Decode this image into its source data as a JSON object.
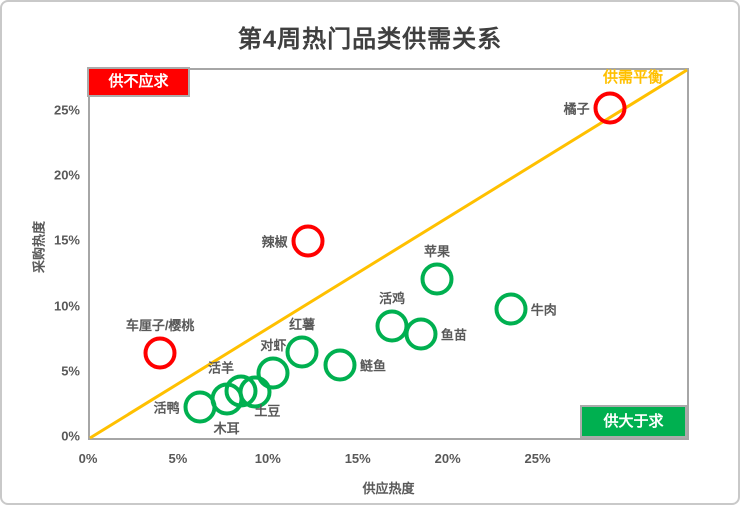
{
  "colors": {
    "red": "#FF0000",
    "green": "#00B050",
    "gold": "#FFC000",
    "axis_gray": "#A6A6A6",
    "text_gray": "#595959",
    "title_gray": "#3F3F3F",
    "badge_border": "#ABABAB",
    "frame_border": "#C9C9C9"
  },
  "chart_data": {
    "type": "scatter",
    "title": "第4周热门品类供需关系",
    "xlabel": "供应热度",
    "ylabel": "采购热度",
    "x_ticks": [
      "0%",
      "5%",
      "10%",
      "15%",
      "20%",
      "25%"
    ],
    "y_ticks": [
      "0%",
      "5%",
      "10%",
      "15%",
      "20%",
      "25%"
    ],
    "xlim": [
      0,
      33.2
    ],
    "ylim": [
      0,
      28.2
    ],
    "grid": false,
    "legend": "none",
    "reference_line": {
      "label": "供需平衡",
      "from_xy": [
        0,
        0
      ],
      "to_xy": [
        33.2,
        28.2
      ],
      "color": "gold"
    },
    "quadrant_labels": [
      {
        "label": "供不应求",
        "position": "top-left",
        "style": "red-badge"
      },
      {
        "label": "供需平衡",
        "position": "top-right",
        "style": "gold-text"
      },
      {
        "label": "供大于求",
        "position": "bottom-right",
        "style": "green-badge"
      }
    ],
    "points": [
      {
        "label": "橘子",
        "x": 28.9,
        "y": 25.3,
        "color": "red",
        "label_pos": "left"
      },
      {
        "label": "辣椒",
        "x": 12.1,
        "y": 15.1,
        "color": "red",
        "label_pos": "left"
      },
      {
        "label": "车厘子/樱桃",
        "x": 3.9,
        "y": 6.5,
        "color": "red",
        "label_pos": "above"
      },
      {
        "label": "苹果",
        "x": 19.3,
        "y": 12.2,
        "color": "green",
        "label_pos": "above"
      },
      {
        "label": "牛肉",
        "x": 23.4,
        "y": 9.9,
        "color": "green",
        "label_pos": "right"
      },
      {
        "label": "活鸡",
        "x": 16.8,
        "y": 8.6,
        "color": "green",
        "label_pos": "above"
      },
      {
        "label": "鱼苗",
        "x": 18.4,
        "y": 8.0,
        "color": "green",
        "label_pos": "right"
      },
      {
        "label": "鲢鱼",
        "x": 13.9,
        "y": 5.6,
        "color": "green",
        "label_pos": "right"
      },
      {
        "label": "红薯",
        "x": 11.8,
        "y": 6.6,
        "color": "green",
        "label_pos": "above"
      },
      {
        "label": "对虾",
        "x": 10.2,
        "y": 5.0,
        "color": "green",
        "label_pos": "above"
      },
      {
        "label": "土豆",
        "x": 9.2,
        "y": 3.5,
        "color": "green",
        "label_pos": "below-right"
      },
      {
        "label": "活羊",
        "x": 8.4,
        "y": 3.6,
        "color": "green",
        "label_pos": "above-left"
      },
      {
        "label": "木耳",
        "x": 7.6,
        "y": 3.0,
        "color": "green",
        "label_pos": "below"
      },
      {
        "label": "活鸭",
        "x": 6.1,
        "y": 2.4,
        "color": "green",
        "label_pos": "left"
      }
    ]
  }
}
